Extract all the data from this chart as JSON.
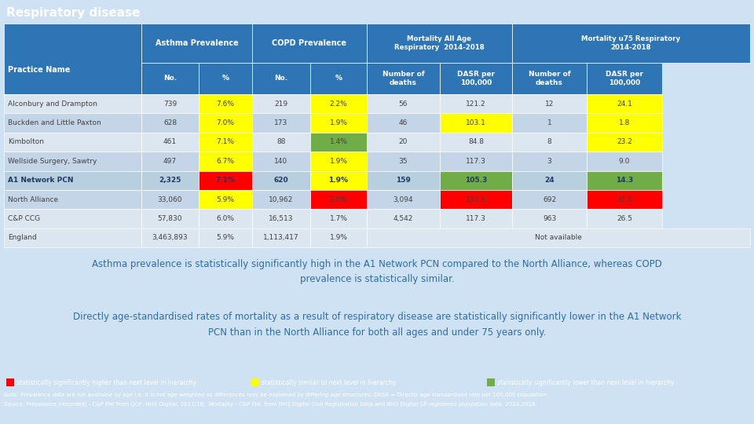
{
  "title": "Respiratory disease",
  "title_bg": "#2e75b6",
  "title_color": "#ffffff",
  "table_bg": "#dce6f1",
  "header_bg": "#2e75b6",
  "header_color": "#ffffff",
  "body_bg": "#cfe2f3",
  "footer_bg": "#2e75b6",
  "color_red": "#ff0000",
  "color_yellow": "#ffff00",
  "color_green": "#70ad47",
  "row_labels": [
    "Alconbury and Drampton",
    "Buckden and Little Paxton",
    "Kimbolton",
    "Wellside Surgery, Sawtry",
    "A1 Network PCN",
    "North Alliance",
    "C&P CCG",
    "England"
  ],
  "data": [
    [
      "739",
      "7.6%",
      "219",
      "2.2%",
      "56",
      "121.2",
      "12",
      "24.1"
    ],
    [
      "628",
      "7.0%",
      "173",
      "1.9%",
      "46",
      "103.1",
      "1",
      "1.8"
    ],
    [
      "461",
      "7.1%",
      "88",
      "1.4%",
      "20",
      "84.8",
      "8",
      "23.2"
    ],
    [
      "497",
      "6.7%",
      "140",
      "1.9%",
      "35",
      "117.3",
      "3",
      "9.0"
    ],
    [
      "2,325",
      "7.1%",
      "620",
      "1.9%",
      "159",
      "105.3",
      "24",
      "14.3"
    ],
    [
      "33,060",
      "5.9%",
      "10,962",
      "2.0%",
      "3,094",
      "137.3",
      "692",
      "31.5"
    ],
    [
      "57,830",
      "6.0%",
      "16,513",
      "1.7%",
      "4,542",
      "117.3",
      "963",
      "26.5"
    ],
    [
      "3,463,893",
      "5.9%",
      "1,113,417",
      "1.9%",
      "",
      "",
      "",
      ""
    ]
  ],
  "cell_colors": [
    [
      "none",
      "yellow",
      "none",
      "yellow",
      "none",
      "none",
      "none",
      "yellow"
    ],
    [
      "none",
      "yellow",
      "none",
      "yellow",
      "none",
      "yellow",
      "none",
      "yellow"
    ],
    [
      "none",
      "yellow",
      "none",
      "green",
      "none",
      "none",
      "none",
      "yellow"
    ],
    [
      "none",
      "yellow",
      "none",
      "yellow",
      "none",
      "none",
      "none",
      "none"
    ],
    [
      "none",
      "red",
      "none",
      "yellow",
      "none",
      "green",
      "none",
      "green"
    ],
    [
      "none",
      "yellow",
      "none",
      "red",
      "none",
      "red",
      "none",
      "red"
    ],
    [
      "none",
      "none",
      "none",
      "none",
      "none",
      "none",
      "none",
      "none"
    ],
    [
      "none",
      "none",
      "none",
      "none",
      "none",
      "none",
      "none",
      "none"
    ]
  ],
  "row_bgs": [
    "#dce6f1",
    "#c5d5e8",
    "#dce6f1",
    "#c5d5e8",
    "#b8cfe0",
    "#c5d5e8",
    "#dce6f1",
    "#dce6f1"
  ],
  "bold_row": 4,
  "paragraph1": "Asthma prevalence is statistically significantly high in the A1 Network PCN compared to the North Alliance, whereas COPD\nprevalence is statistically similar.",
  "paragraph2": "Directly age-standardised rates of mortality as a result of respiratory disease are statistically significantly lower in the A1 Network\nPCN than in the North Alliance for both all ages and under 75 years only.",
  "legend_items": [
    {
      "color": "#ff0000",
      "text": "statistically significantly higher than next level in hierarchy"
    },
    {
      "color": "#ffff00",
      "text": "statistically similar to next level in hierarchy"
    },
    {
      "color": "#70ad47",
      "text": "statistically significantly lower than next level in hierarchy"
    }
  ],
  "note_line1": "Note: Prevalence data are not available by age i.e. it is not age weighted so differences may be explained by differing age structures; DASR = Directly age standardised rate per 100,000 population",
  "note_line2": "Source: Prevalence (recorded) - C&P PHI from QOF, NHS Digital, 2017/18;  Mortality - C&P PHI, from NHS Digital Civil Registration Data and NHS Digital GP registered population data, 2014-2018"
}
